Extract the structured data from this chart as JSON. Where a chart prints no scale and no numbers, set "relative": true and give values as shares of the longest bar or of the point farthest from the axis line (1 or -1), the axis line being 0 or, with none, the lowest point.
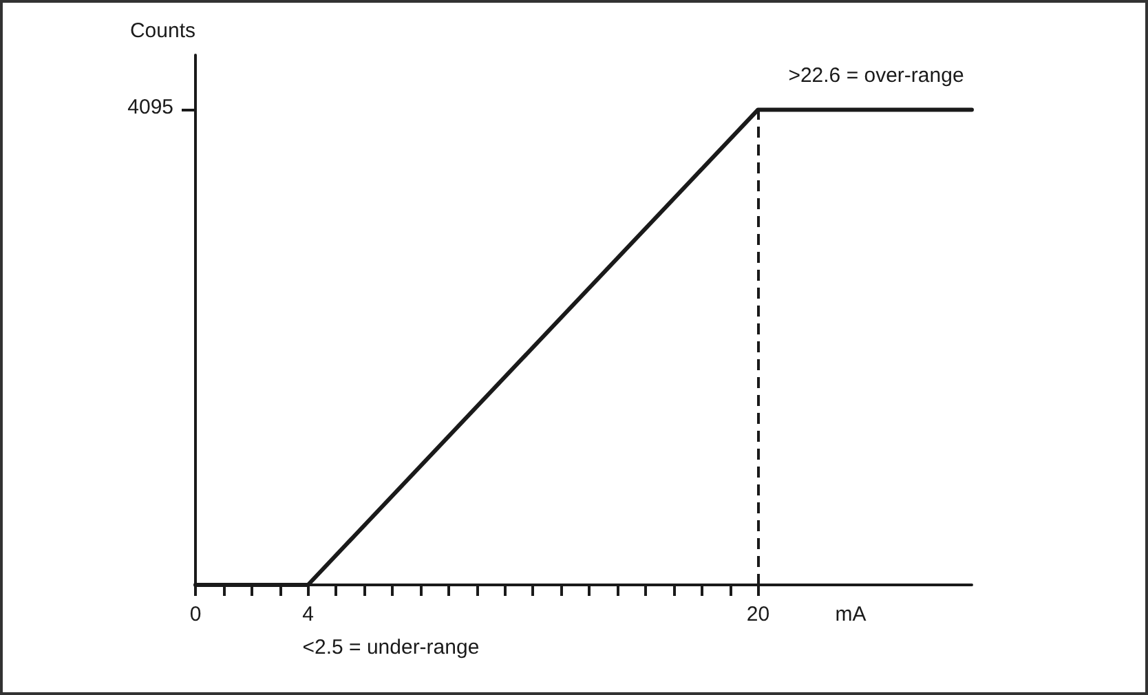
{
  "chart_data": {
    "type": "line",
    "xlabel": "mA",
    "ylabel": "Counts",
    "x": [
      0,
      4,
      20,
      27.6
    ],
    "series": [
      {
        "color": "#1a1a1a",
        "values": [
          0,
          0,
          1,
          1
        ]
      }
    ],
    "relative": true,
    "xlim": [
      0,
      27.6
    ],
    "xticks": [
      0,
      {
        "value": 1,
        "label": null
      },
      {
        "value": 2,
        "label": null
      },
      {
        "value": 3,
        "label": null
      },
      4,
      {
        "value": 5,
        "label": null
      },
      {
        "value": 6,
        "label": null
      },
      {
        "value": 7,
        "label": null
      },
      {
        "value": 8,
        "label": null
      },
      {
        "value": 9,
        "label": null
      },
      {
        "value": 10,
        "label": null
      },
      {
        "value": 11,
        "label": null
      },
      {
        "value": 12,
        "label": null
      },
      {
        "value": 13,
        "label": null
      },
      {
        "value": 14,
        "label": null
      },
      {
        "value": 15,
        "label": null
      },
      {
        "value": 16,
        "label": null
      },
      {
        "value": 17,
        "label": null
      },
      {
        "value": 18,
        "label": null
      },
      {
        "value": 19,
        "label": null
      },
      20
    ],
    "ref_lines": [
      {
        "axis": "x",
        "value": 20,
        "color": "#1a1a1a",
        "line_style": "dashed"
      }
    ],
    "annotations": [
      ">22.6 = over-range",
      "<2.5 = under-range",
      "4095"
    ],
    "grid": false,
    "marker": "none",
    "line_style": "solid"
  }
}
